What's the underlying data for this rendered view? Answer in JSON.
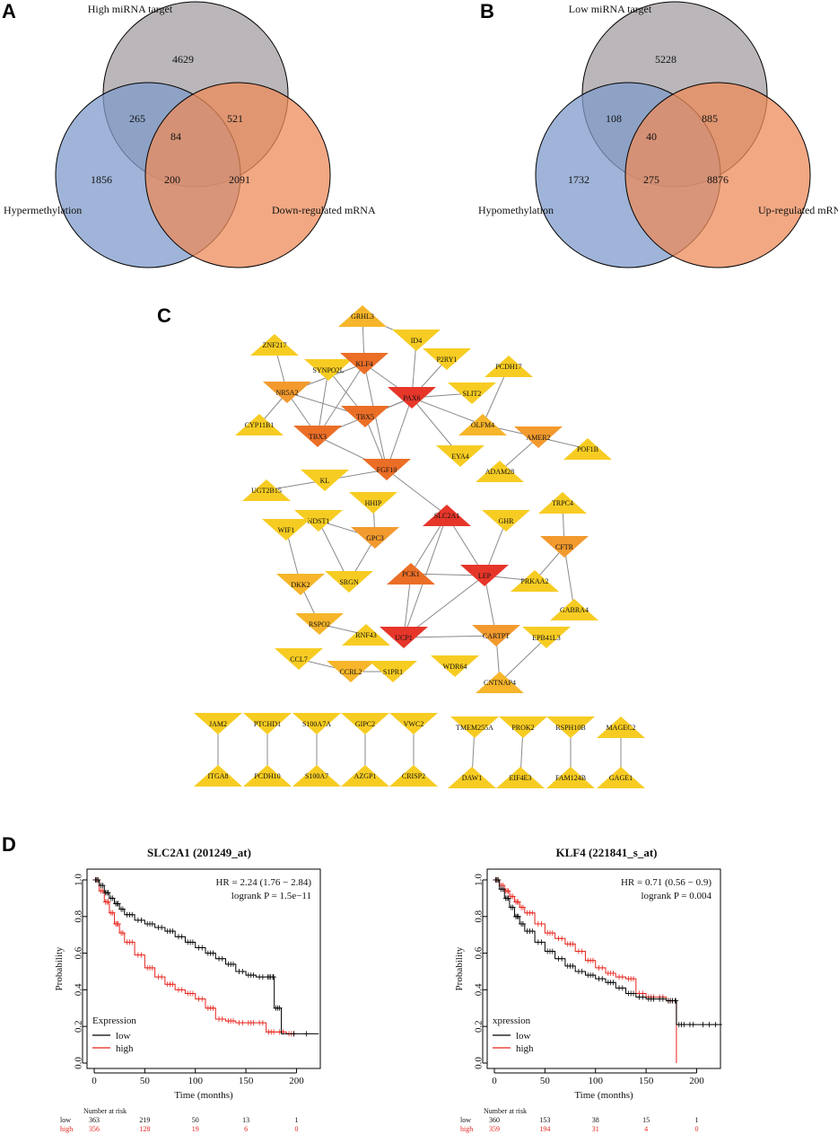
{
  "panels": {
    "a": "A",
    "b": "B",
    "c": "C",
    "d": "D"
  },
  "venn_a": {
    "sets": {
      "top": "High miRNA target",
      "left": "Hypermethylation",
      "right": "Down-regulated mRNA"
    },
    "regions": {
      "top": "4629",
      "top_left": "265",
      "top_right": "521",
      "center": "84",
      "left": "1856",
      "bottom": "200",
      "right": "2091"
    },
    "colors": {
      "top": "#b3aeb1",
      "left": "#7f9bcb",
      "right": "#ec8b59"
    }
  },
  "venn_b": {
    "sets": {
      "top": "Low miRNA target",
      "left": "Hypomethylation",
      "right": "Up-regulated mRNA"
    },
    "regions": {
      "top": "5228",
      "top_left": "108",
      "top_right": "885",
      "center": "40",
      "left": "1732",
      "bottom": "275",
      "right": "8876"
    },
    "colors": {
      "top": "#b3aeb1",
      "left": "#7f9bcb",
      "right": "#ec8b59"
    }
  },
  "network": {
    "colors": {
      "red": "#e6362a",
      "dark_orange": "#eb6e27",
      "orange": "#f29a2e",
      "light_orange": "#f6b52a",
      "yellow": "#f7cc22"
    },
    "nodes": [
      {
        "id": "GRHL3",
        "shape": "up",
        "color": "light_orange"
      },
      {
        "id": "ID4",
        "shape": "down",
        "color": "yellow"
      },
      {
        "id": "ZNF217",
        "shape": "up",
        "color": "yellow"
      },
      {
        "id": "SYNPO2L",
        "shape": "down",
        "color": "yellow"
      },
      {
        "id": "KLF4",
        "shape": "down",
        "color": "dark_orange"
      },
      {
        "id": "P2RY1",
        "shape": "down",
        "color": "yellow"
      },
      {
        "id": "PCDH17",
        "shape": "up",
        "color": "yellow"
      },
      {
        "id": "NR5A2",
        "shape": "down",
        "color": "orange"
      },
      {
        "id": "PAX6",
        "shape": "down",
        "color": "red"
      },
      {
        "id": "SLIT2",
        "shape": "down",
        "color": "yellow"
      },
      {
        "id": "CYP11B1",
        "shape": "up",
        "color": "yellow"
      },
      {
        "id": "TBX5",
        "shape": "down",
        "color": "dark_orange"
      },
      {
        "id": "OLFM4",
        "shape": "up",
        "color": "light_orange"
      },
      {
        "id": "AMER2",
        "shape": "down",
        "color": "orange"
      },
      {
        "id": "TBX3",
        "shape": "down",
        "color": "dark_orange"
      },
      {
        "id": "POF1B",
        "shape": "up",
        "color": "yellow"
      },
      {
        "id": "EYA4",
        "shape": "down",
        "color": "yellow"
      },
      {
        "id": "ADAM28",
        "shape": "up",
        "color": "yellow"
      },
      {
        "id": "FGF10",
        "shape": "down",
        "color": "dark_orange"
      },
      {
        "id": "KL",
        "shape": "down",
        "color": "yellow"
      },
      {
        "id": "UGT2B15",
        "shape": "up",
        "color": "yellow"
      },
      {
        "id": "SLC2A1",
        "shape": "up",
        "color": "red"
      },
      {
        "id": "HHIP",
        "shape": "down",
        "color": "yellow"
      },
      {
        "id": "TRPC4",
        "shape": "up",
        "color": "yellow"
      },
      {
        "id": "NDST1",
        "shape": "down",
        "color": "yellow"
      },
      {
        "id": "WIF1",
        "shape": "down",
        "color": "yellow"
      },
      {
        "id": "GHR",
        "shape": "down",
        "color": "yellow"
      },
      {
        "id": "GPC3",
        "shape": "down",
        "color": "orange"
      },
      {
        "id": "CFTR",
        "shape": "down",
        "color": "orange"
      },
      {
        "id": "PCK1",
        "shape": "up",
        "color": "dark_orange"
      },
      {
        "id": "LEP",
        "shape": "down",
        "color": "red"
      },
      {
        "id": "SRGN",
        "shape": "down",
        "color": "yellow"
      },
      {
        "id": "PRKAA2",
        "shape": "up",
        "color": "yellow"
      },
      {
        "id": "DKK2",
        "shape": "down",
        "color": "light_orange"
      },
      {
        "id": "GABRA4",
        "shape": "up",
        "color": "yellow"
      },
      {
        "id": "RSPO2",
        "shape": "down",
        "color": "light_orange"
      },
      {
        "id": "RNF43",
        "shape": "up",
        "color": "yellow"
      },
      {
        "id": "UCP1",
        "shape": "down",
        "color": "red"
      },
      {
        "id": "CARTPT",
        "shape": "down",
        "color": "orange"
      },
      {
        "id": "EPB41L3",
        "shape": "down",
        "color": "yellow"
      },
      {
        "id": "CCL7",
        "shape": "down",
        "color": "yellow"
      },
      {
        "id": "CCRL2",
        "shape": "down",
        "color": "light_orange"
      },
      {
        "id": "S1PR1",
        "shape": "down",
        "color": "yellow"
      },
      {
        "id": "WDR64",
        "shape": "down",
        "color": "yellow"
      },
      {
        "id": "CNTNAP4",
        "shape": "up",
        "color": "light_orange"
      },
      {
        "id": "JAM2",
        "shape": "down",
        "color": "yellow"
      },
      {
        "id": "PTCHD1",
        "shape": "down",
        "color": "yellow"
      },
      {
        "id": "S100A7A",
        "shape": "down",
        "color": "yellow"
      },
      {
        "id": "GIPC2",
        "shape": "down",
        "color": "yellow"
      },
      {
        "id": "VWC2",
        "shape": "down",
        "color": "yellow"
      },
      {
        "id": "TMEM255A",
        "shape": "down",
        "color": "yellow"
      },
      {
        "id": "PROK2",
        "shape": "down",
        "color": "yellow"
      },
      {
        "id": "RSPH10B",
        "shape": "down",
        "color": "yellow"
      },
      {
        "id": "MAGEC2",
        "shape": "up",
        "color": "yellow"
      },
      {
        "id": "ITGA8",
        "shape": "up",
        "color": "yellow"
      },
      {
        "id": "PCDH10",
        "shape": "up",
        "color": "yellow"
      },
      {
        "id": "S100A7",
        "shape": "up",
        "color": "yellow"
      },
      {
        "id": "AZGP1",
        "shape": "up",
        "color": "yellow"
      },
      {
        "id": "CRISP2",
        "shape": "up",
        "color": "yellow"
      },
      {
        "id": "DAW1",
        "shape": "up",
        "color": "yellow"
      },
      {
        "id": "EIF4E3",
        "shape": "up",
        "color": "yellow"
      },
      {
        "id": "FAM124B",
        "shape": "up",
        "color": "yellow"
      },
      {
        "id": "GAGE1",
        "shape": "up",
        "color": "yellow"
      }
    ],
    "edges": [
      [
        "GRHL3",
        "KLF4"
      ],
      [
        "GRHL3",
        "ID4"
      ],
      [
        "ID4",
        "PAX6"
      ],
      [
        "ZNF217",
        "NR5A2"
      ],
      [
        "SYNPO2L",
        "TBX5"
      ],
      [
        "SYNPO2L",
        "TBX3"
      ],
      [
        "KLF4",
        "PAX6"
      ],
      [
        "KLF4",
        "NR5A2"
      ],
      [
        "KLF4",
        "TBX3"
      ],
      [
        "KLF4",
        "FGF10"
      ],
      [
        "P2RY1",
        "PAX6"
      ],
      [
        "PCDH17",
        "OLFM4"
      ],
      [
        "NR5A2",
        "CYP11B1"
      ],
      [
        "NR5A2",
        "TBX5"
      ],
      [
        "NR5A2",
        "TBX3"
      ],
      [
        "PAX6",
        "TBX5"
      ],
      [
        "PAX6",
        "SLIT2"
      ],
      [
        "PAX6",
        "TBX3"
      ],
      [
        "PAX6",
        "FGF10"
      ],
      [
        "PAX6",
        "EYA4"
      ],
      [
        "PAX6",
        "OLFM4"
      ],
      [
        "TBX5",
        "FGF10"
      ],
      [
        "TBX3",
        "FGF10"
      ],
      [
        "OLFM4",
        "AMER2"
      ],
      [
        "AMER2",
        "POF1B"
      ],
      [
        "AMER2",
        "ADAM28"
      ],
      [
        "FGF10",
        "KL"
      ],
      [
        "FGF10",
        "SLC2A1"
      ],
      [
        "KL",
        "UGT2B15"
      ],
      [
        "SLC2A1",
        "PCK1"
      ],
      [
        "SLC2A1",
        "LEP"
      ],
      [
        "SLC2A1",
        "UCP1"
      ],
      [
        "HHIP",
        "GPC3"
      ],
      [
        "NDST1",
        "GPC3"
      ],
      [
        "NDST1",
        "SRGN"
      ],
      [
        "GPC3",
        "SRGN"
      ],
      [
        "WIF1",
        "DKK2"
      ],
      [
        "GHR",
        "LEP"
      ],
      [
        "TRPC4",
        "CFTR"
      ],
      [
        "CFTR",
        "PRKAA2"
      ],
      [
        "CFTR",
        "GABRA4"
      ],
      [
        "PCK1",
        "LEP"
      ],
      [
        "PCK1",
        "UCP1"
      ],
      [
        "LEP",
        "PRKAA2"
      ],
      [
        "LEP",
        "UCP1"
      ],
      [
        "LEP",
        "CARTPT"
      ],
      [
        "DKK2",
        "RSPO2"
      ],
      [
        "RSPO2",
        "RNF43"
      ],
      [
        "UCP1",
        "CARTPT"
      ],
      [
        "CARTPT",
        "CNTNAP4"
      ],
      [
        "EPB41L3",
        "CNTNAP4"
      ],
      [
        "CCL7",
        "CCRL2"
      ],
      [
        "CCRL2",
        "S1PR1"
      ],
      [
        "JAM2",
        "ITGA8"
      ],
      [
        "PTCHD1",
        "PCDH10"
      ],
      [
        "S100A7A",
        "S100A7"
      ],
      [
        "GIPC2",
        "AZGP1"
      ],
      [
        "VWC2",
        "CRISP2"
      ],
      [
        "TMEM255A",
        "DAW1"
      ],
      [
        "PROK2",
        "EIF4E3"
      ],
      [
        "RSPH10B",
        "FAM124B"
      ],
      [
        "MAGEC2",
        "GAGE1"
      ]
    ]
  },
  "chart_data": [
    {
      "type": "line",
      "title": "SLC2A1 (201249_at)",
      "xlabel": "Time (months)",
      "ylabel": "Probability",
      "xlim": [
        0,
        220
      ],
      "ylim": [
        0,
        1
      ],
      "xticks": [
        "0",
        "50",
        "100",
        "150",
        "200"
      ],
      "yticks": [
        "0.0",
        "0.2",
        "0.4",
        "0.6",
        "0.8",
        "1.0"
      ],
      "annotation": {
        "hr": "HR = 2.24 (1.76 − 2.84)",
        "logrank": "logrank P = 1.5e−11"
      },
      "legend": {
        "title": "Expression",
        "low": "low",
        "high": "high",
        "position": "bottom-left"
      },
      "series": [
        {
          "name": "low",
          "color": "#000000",
          "x": [
            0,
            5,
            10,
            15,
            20,
            25,
            30,
            40,
            50,
            60,
            70,
            80,
            90,
            100,
            110,
            120,
            130,
            140,
            150,
            160,
            170,
            176,
            178,
            185,
            222
          ],
          "y": [
            1.0,
            0.97,
            0.93,
            0.9,
            0.87,
            0.84,
            0.81,
            0.78,
            0.76,
            0.74,
            0.72,
            0.69,
            0.66,
            0.63,
            0.6,
            0.57,
            0.54,
            0.5,
            0.48,
            0.47,
            0.47,
            0.47,
            0.3,
            0.16,
            0.16
          ]
        },
        {
          "name": "high",
          "color": "#e8241d",
          "x": [
            0,
            5,
            10,
            15,
            20,
            25,
            30,
            40,
            50,
            60,
            70,
            80,
            90,
            100,
            110,
            120,
            130,
            140,
            150,
            160,
            170,
            180,
            190,
            200
          ],
          "y": [
            1.0,
            0.94,
            0.88,
            0.82,
            0.76,
            0.71,
            0.66,
            0.59,
            0.52,
            0.47,
            0.43,
            0.4,
            0.38,
            0.35,
            0.3,
            0.24,
            0.23,
            0.22,
            0.22,
            0.22,
            0.17,
            0.17,
            0.16,
            0.16
          ]
        }
      ],
      "risk_table": {
        "label": "Number at risk",
        "times": [
          0,
          50,
          100,
          150,
          200
        ],
        "low": [
          "363",
          "219",
          "50",
          "13",
          "1"
        ],
        "high": [
          "356",
          "128",
          "19",
          "6",
          "0"
        ]
      }
    },
    {
      "type": "line",
      "title": "KLF4 (221841_s_at)",
      "xlabel": "Time (months)",
      "ylabel": "Probability",
      "xlim": [
        0,
        220
      ],
      "ylim": [
        0,
        1
      ],
      "xticks": [
        "0",
        "50",
        "100",
        "150",
        "200"
      ],
      "yticks": [
        "0.0",
        "0.2",
        "0.4",
        "0.6",
        "0.8",
        "1.0"
      ],
      "annotation": {
        "hr": "HR = 0.71 (0.56 − 0.9)",
        "logrank": "logrank P = 0.004"
      },
      "legend": {
        "title": "xpression",
        "low": "low",
        "high": "high",
        "position": "bottom-left"
      },
      "series": [
        {
          "name": "low",
          "color": "#000000",
          "x": [
            0,
            5,
            10,
            15,
            20,
            25,
            30,
            40,
            50,
            60,
            70,
            80,
            90,
            100,
            110,
            120,
            130,
            140,
            150,
            160,
            170,
            178,
            180,
            190,
            200,
            225
          ],
          "y": [
            1.0,
            0.95,
            0.9,
            0.85,
            0.8,
            0.76,
            0.72,
            0.66,
            0.61,
            0.57,
            0.53,
            0.5,
            0.48,
            0.46,
            0.44,
            0.41,
            0.38,
            0.36,
            0.35,
            0.35,
            0.34,
            0.34,
            0.21,
            0.21,
            0.21,
            0.21
          ]
        },
        {
          "name": "high",
          "color": "#e8241d",
          "x": [
            0,
            5,
            10,
            15,
            20,
            25,
            30,
            40,
            50,
            60,
            70,
            80,
            90,
            100,
            110,
            120,
            130,
            140,
            150,
            160,
            170,
            178,
            180
          ],
          "y": [
            1.0,
            0.97,
            0.94,
            0.91,
            0.88,
            0.85,
            0.82,
            0.76,
            0.71,
            0.68,
            0.65,
            0.61,
            0.56,
            0.52,
            0.49,
            0.47,
            0.46,
            0.38,
            0.36,
            0.36,
            0.34,
            0.34,
            0.0
          ]
        }
      ],
      "risk_table": {
        "label": "Number at risk",
        "times": [
          0,
          50,
          100,
          150,
          200
        ],
        "low": [
          "360",
          "153",
          "38",
          "15",
          "1"
        ],
        "high": [
          "359",
          "194",
          "31",
          "4",
          "0"
        ]
      }
    }
  ]
}
